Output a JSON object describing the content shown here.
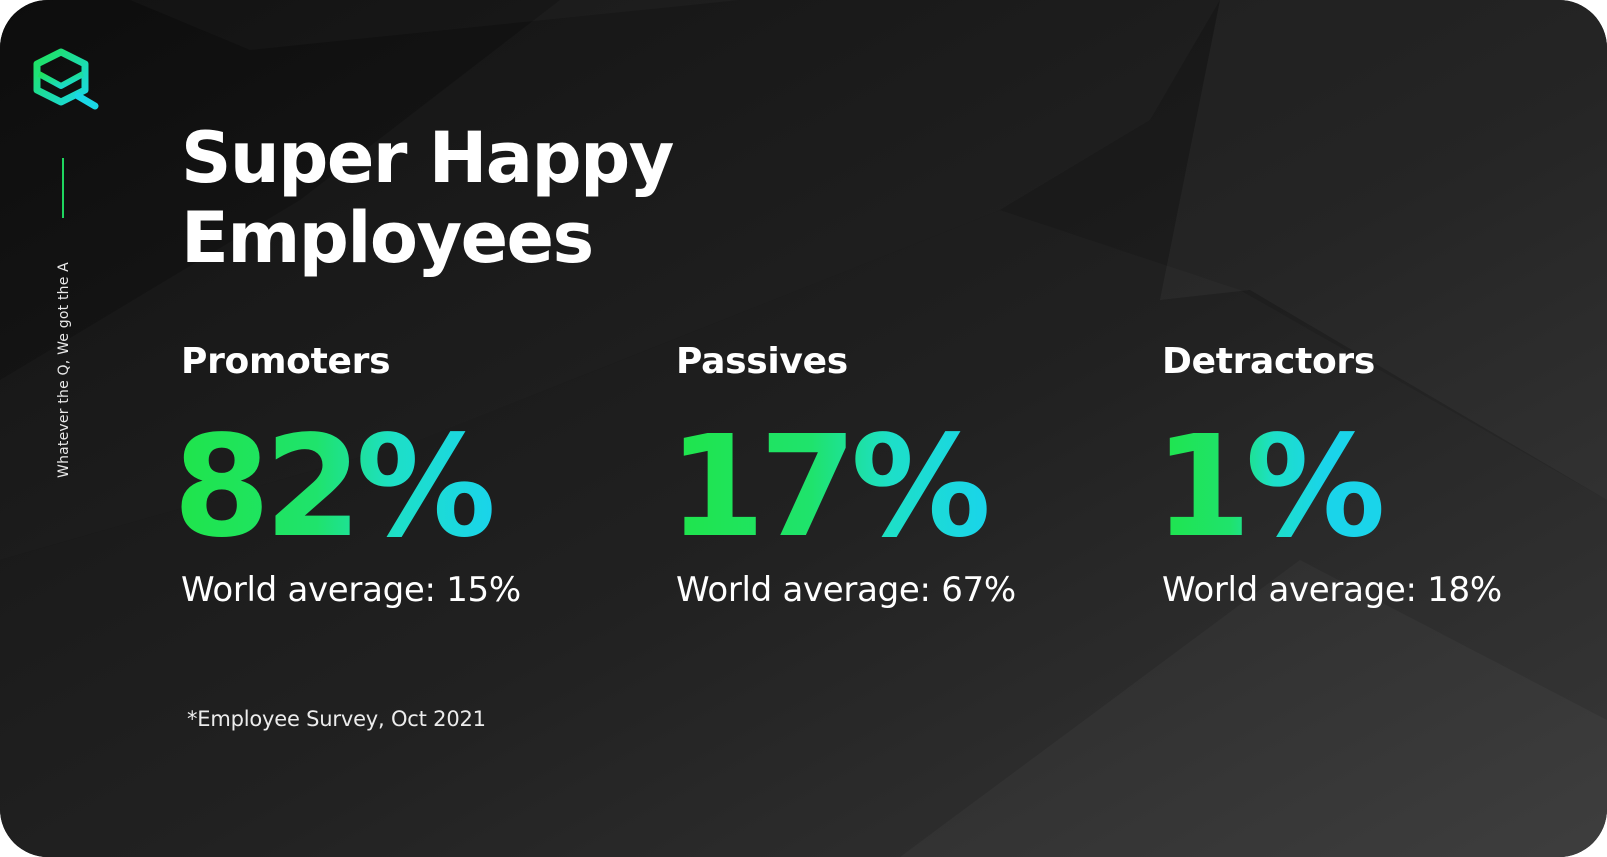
{
  "tagline": "Whatever the Q, We got the A",
  "title": {
    "line1": "Super Happy",
    "line2": "Employees"
  },
  "stats": [
    {
      "label": "Promoters",
      "value": "82%",
      "world_average": "World average: 15%"
    },
    {
      "label": "Passives",
      "value": "17%",
      "world_average": "World average: 67%"
    },
    {
      "label": "Detractors",
      "value": "1%",
      "world_average": "World average: 18%"
    }
  ],
  "footnote": "*Employee Survey, Oct 2021",
  "icons": {
    "logo": "hexagon-q-logo-icon"
  },
  "colors": {
    "background": "#141414",
    "accent_green": "#1fe25a",
    "accent_cyan": "#1ad8e6",
    "text": "#ffffff"
  }
}
